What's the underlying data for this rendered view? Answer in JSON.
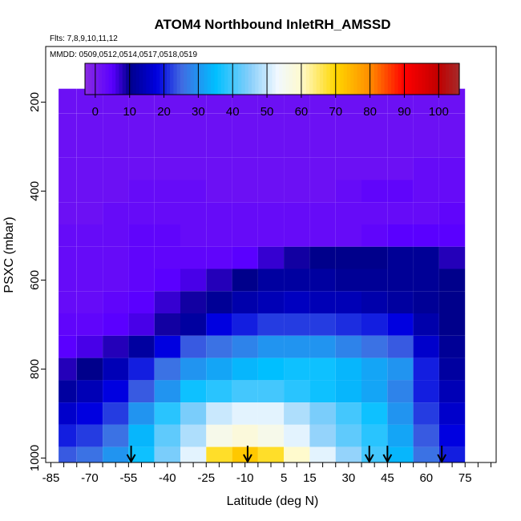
{
  "chart_data": {
    "type": "heatmap",
    "title": "ATOM4 Northbound InletRH_AMSSD",
    "flights_label": "Flts: 7,8,9,10,11,12",
    "dates_label": "MMDD: 0509,0512,0514,0517,0518,0519",
    "xlabel": "Latitude (deg N)",
    "ylabel": "PSXC (mbar)",
    "xlim": [
      -87,
      87
    ],
    "ylim": [
      1010,
      75
    ],
    "y_reversed": true,
    "x_ticks": [
      -85,
      -70,
      -55,
      -40,
      -25,
      -10,
      5,
      15,
      30,
      45,
      60,
      75
    ],
    "x_minor_step": 5,
    "y_ticks": [
      200,
      400,
      600,
      800,
      1000
    ],
    "colorbar": {
      "min": -3,
      "max": 106,
      "ticks": [
        0,
        10,
        20,
        30,
        40,
        50,
        60,
        70,
        80,
        90,
        100
      ],
      "stops": [
        {
          "v": -3,
          "c": "#8a2be2"
        },
        {
          "v": 5,
          "c": "#5a00ff"
        },
        {
          "v": 10,
          "c": "#00008b"
        },
        {
          "v": 18,
          "c": "#0000e0"
        },
        {
          "v": 25,
          "c": "#4169e1"
        },
        {
          "v": 35,
          "c": "#00bfff"
        },
        {
          "v": 45,
          "c": "#87cefa"
        },
        {
          "v": 53,
          "c": "#f0f8ff"
        },
        {
          "v": 60,
          "c": "#fffacd"
        },
        {
          "v": 70,
          "c": "#ffd700"
        },
        {
          "v": 80,
          "c": "#ff8c00"
        },
        {
          "v": 90,
          "c": "#ff0000"
        },
        {
          "v": 100,
          "c": "#c00000"
        },
        {
          "v": 106,
          "c": "#a52a2a"
        }
      ]
    },
    "profile_markers_lat": [
      -54,
      -9,
      38,
      45,
      66
    ],
    "data_lat_range": [
      -80,
      75
    ],
    "data_top_pressure_at_center": 170,
    "pressure_levels": [
      200,
      250,
      300,
      350,
      400,
      450,
      500,
      550,
      600,
      650,
      700,
      750,
      800,
      850,
      900,
      950,
      1000
    ],
    "lat_bins": [
      -80,
      -70,
      -60,
      -50,
      -40,
      -30,
      -20,
      -10,
      0,
      10,
      20,
      30,
      40,
      50,
      60,
      70
    ],
    "rh_grid": [
      [
        2,
        2,
        2,
        2,
        2,
        2,
        2,
        2,
        2,
        2,
        2,
        2,
        2,
        2,
        2,
        2
      ],
      [
        2,
        2,
        2,
        2,
        2,
        2,
        2,
        2,
        2,
        2,
        2,
        2,
        2,
        2,
        2,
        2
      ],
      [
        2,
        2,
        2,
        2,
        2,
        2,
        2,
        2,
        2,
        2,
        2,
        2,
        2,
        2,
        2,
        2
      ],
      [
        2,
        2,
        2,
        2,
        2,
        2,
        2,
        2,
        2,
        2,
        2,
        2,
        2,
        2,
        3,
        3
      ],
      [
        2,
        2,
        2,
        3,
        3,
        3,
        2,
        2,
        2,
        2,
        2,
        3,
        4,
        4,
        3,
        3
      ],
      [
        2,
        2,
        3,
        3,
        3,
        3,
        3,
        3,
        3,
        3,
        3,
        3,
        3,
        3,
        3,
        4
      ],
      [
        3,
        3,
        3,
        4,
        4,
        3,
        3,
        3,
        3,
        3,
        3,
        3,
        4,
        5,
        5,
        5
      ],
      [
        3,
        3,
        3,
        4,
        4,
        4,
        4,
        5,
        7,
        9,
        10,
        10,
        10,
        11,
        11,
        8
      ],
      [
        3,
        3,
        3,
        4,
        5,
        6,
        8,
        10,
        12,
        12,
        12,
        11,
        11,
        11,
        11,
        10
      ],
      [
        3,
        3,
        4,
        5,
        7,
        9,
        11,
        13,
        14,
        15,
        14,
        14,
        13,
        12,
        11,
        10
      ],
      [
        4,
        4,
        5,
        6,
        9,
        12,
        18,
        20,
        22,
        22,
        22,
        21,
        20,
        18,
        13,
        10
      ],
      [
        5,
        6,
        8,
        12,
        18,
        24,
        26,
        28,
        30,
        30,
        30,
        28,
        26,
        24,
        16,
        11
      ],
      [
        8,
        10,
        14,
        20,
        26,
        30,
        32,
        34,
        35,
        36,
        36,
        34,
        32,
        30,
        20,
        12
      ],
      [
        12,
        14,
        18,
        24,
        30,
        36,
        38,
        40,
        40,
        38,
        36,
        34,
        32,
        28,
        20,
        14
      ],
      [
        16,
        18,
        22,
        30,
        38,
        44,
        50,
        52,
        52,
        48,
        44,
        40,
        36,
        30,
        22,
        16
      ],
      [
        20,
        22,
        26,
        34,
        42,
        48,
        56,
        58,
        56,
        52,
        46,
        42,
        38,
        32,
        24,
        18
      ],
      [
        24,
        26,
        30,
        36,
        44,
        52,
        68,
        72,
        68,
        60,
        52,
        46,
        40,
        34,
        26,
        20
      ]
    ]
  }
}
